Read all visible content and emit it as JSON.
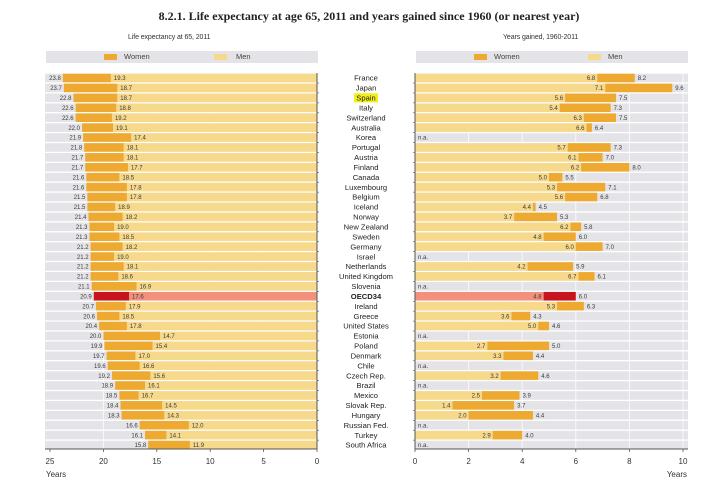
{
  "page": {
    "title": "8.2.1. Life expectancy at age 65, 2011 and years gained since 1960 (or nearest year)"
  },
  "panels": {
    "left": {
      "subtitle": "Life expectancy at 65, 2011",
      "legend_women": "Women",
      "legend_men": "Men"
    },
    "right": {
      "subtitle": "Years gained, 1960-2011",
      "legend_women": "Women",
      "legend_men": "Men"
    }
  },
  "highlight": {
    "country": "Spain",
    "aggregate": "OECD34"
  },
  "colors": {
    "women": "#eeaa30",
    "men": "#f7d98b",
    "aggregate_women": "#c8141c",
    "aggregate_men": "#f3907c",
    "row_background": "#e4e4e8",
    "country_highlight": "#f2ef1a"
  },
  "chart_data": [
    {
      "type": "bar",
      "orientation": "horizontal",
      "title": "Life expectancy at 65, 2011",
      "xlabel": "Years",
      "ylabel": "",
      "xlim": [
        25,
        0
      ],
      "xticks": [
        25,
        20,
        15,
        10,
        5,
        0
      ],
      "grid": true,
      "legend": [
        "Women",
        "Men"
      ],
      "legend_position": "top",
      "categories": [
        "France",
        "Japan",
        "Spain",
        "Italy",
        "Switzerland",
        "Australia",
        "Korea",
        "Portugal",
        "Austria",
        "Finland",
        "Canada",
        "Luxembourg",
        "Belgium",
        "Iceland",
        "Norway",
        "New Zealand",
        "Sweden",
        "Germany",
        "Israel",
        "Netherlands",
        "United Kingdom",
        "Slovenia",
        "OECD34",
        "Ireland",
        "Greece",
        "United States",
        "Estonia",
        "Poland",
        "Denmark",
        "Chile",
        "Czech Rep.",
        "Brazil",
        "Mexico",
        "Slovak Rep.",
        "Hungary",
        "Russian Fed.",
        "Turkey",
        "South Africa"
      ],
      "series": [
        {
          "name": "Women",
          "values": [
            23.8,
            23.7,
            22.8,
            22.6,
            22.6,
            22.0,
            21.9,
            21.8,
            21.7,
            21.7,
            21.6,
            21.6,
            21.5,
            21.5,
            21.4,
            21.3,
            21.3,
            21.2,
            21.2,
            21.2,
            21.2,
            21.1,
            20.9,
            20.7,
            20.6,
            20.4,
            20.0,
            19.9,
            19.7,
            19.6,
            19.2,
            18.9,
            18.5,
            18.4,
            18.3,
            16.6,
            16.1,
            15.8
          ]
        },
        {
          "name": "Men",
          "values": [
            19.3,
            18.7,
            18.7,
            18.8,
            19.2,
            19.1,
            17.4,
            18.1,
            18.1,
            17.7,
            18.5,
            17.8,
            17.8,
            18.9,
            18.2,
            19.0,
            18.5,
            18.2,
            19.0,
            18.1,
            18.6,
            16.9,
            17.6,
            17.9,
            18.5,
            17.8,
            14.7,
            15.4,
            17.0,
            16.6,
            15.6,
            16.1,
            16.7,
            14.5,
            14.3,
            12.0,
            14.1,
            11.9
          ]
        }
      ]
    },
    {
      "type": "bar",
      "orientation": "horizontal",
      "title": "Years gained, 1960-2011",
      "xlabel": "Years",
      "ylabel": "",
      "xlim": [
        0,
        10
      ],
      "xticks": [
        0,
        2,
        4,
        6,
        8,
        10
      ],
      "grid": true,
      "legend": [
        "Women",
        "Men"
      ],
      "legend_position": "top",
      "missing_label": "n.a.",
      "categories": [
        "France",
        "Japan",
        "Spain",
        "Italy",
        "Switzerland",
        "Australia",
        "Korea",
        "Portugal",
        "Austria",
        "Finland",
        "Canada",
        "Luxembourg",
        "Belgium",
        "Iceland",
        "Norway",
        "New Zealand",
        "Sweden",
        "Germany",
        "Israel",
        "Netherlands",
        "United Kingdom",
        "Slovenia",
        "OECD34",
        "Ireland",
        "Greece",
        "United States",
        "Estonia",
        "Poland",
        "Denmark",
        "Chile",
        "Czech Rep.",
        "Brazil",
        "Mexico",
        "Slovak Rep.",
        "Hungary",
        "Russian Fed.",
        "Turkey",
        "South Africa"
      ],
      "series": [
        {
          "name": "Women",
          "values": [
            8.2,
            9.6,
            7.5,
            7.3,
            7.5,
            6.4,
            null,
            7.3,
            7.0,
            8.0,
            5.5,
            7.1,
            6.8,
            4.5,
            5.3,
            5.8,
            6.0,
            7.0,
            null,
            5.9,
            6.1,
            null,
            6.0,
            6.3,
            4.3,
            4.6,
            null,
            5.0,
            4.4,
            null,
            4.6,
            null,
            3.9,
            3.7,
            4.4,
            null,
            4.0,
            null
          ]
        },
        {
          "name": "Men",
          "values": [
            6.8,
            7.1,
            5.6,
            5.4,
            6.3,
            6.6,
            null,
            5.7,
            6.1,
            6.2,
            5.0,
            5.3,
            5.6,
            4.4,
            3.7,
            6.2,
            4.8,
            6.0,
            null,
            4.2,
            6.7,
            null,
            4.8,
            5.3,
            3.6,
            5.0,
            null,
            2.7,
            3.3,
            null,
            3.2,
            null,
            2.5,
            1.4,
            2.0,
            null,
            2.9,
            null
          ]
        }
      ]
    }
  ]
}
